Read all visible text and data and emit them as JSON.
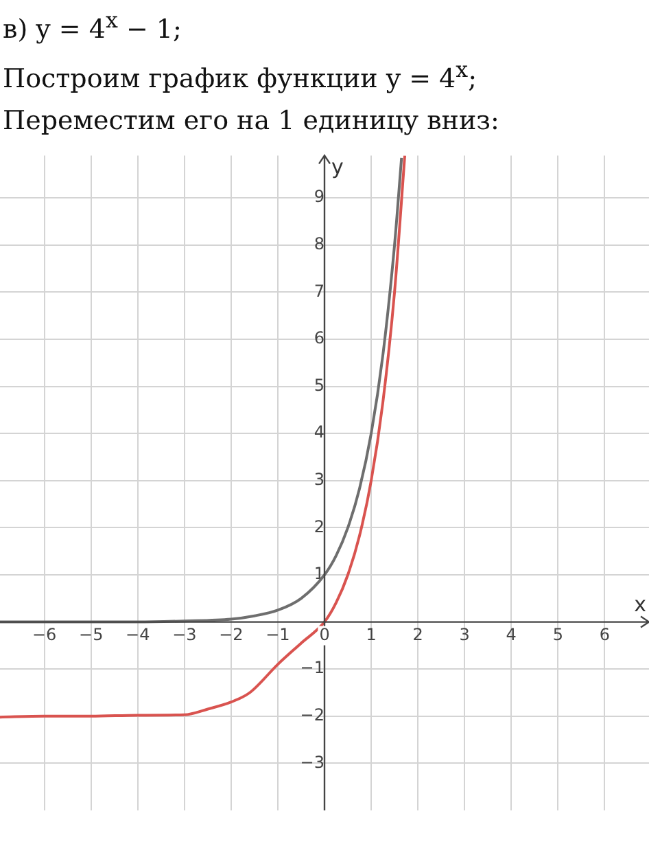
{
  "chart_data": {
    "type": "line",
    "title": "в) y = 4$^{x}$ − 1;",
    "subtitle": "Построим график функции y = 4$^{x}$;",
    "annotations": [
      "Переместим его на 1 единицу вниз:"
    ],
    "xlabel": "x",
    "ylabel": "y",
    "series": [
      {
        "color": "#6e6e6e",
        "x": [
          -6.95,
          -6,
          -5,
          -4,
          -3,
          -2,
          -1.5,
          -1,
          -0.5,
          0,
          0.25,
          0.5,
          0.75,
          1,
          1.25,
          1.5,
          1.65
        ],
        "values": [
          0,
          0,
          0,
          0,
          0.02,
          0.06,
          0.13,
          0.25,
          0.5,
          1,
          1.41,
          2,
          2.83,
          4,
          5.66,
          8,
          9.85
        ]
      },
      {
        "color": "#d9534f",
        "x": [
          -6.95,
          -6,
          -5,
          -4,
          -3,
          -2.5,
          -2,
          -1.6,
          -1,
          -0.5,
          0,
          0.25,
          0.5,
          0.75,
          1,
          1.25,
          1.5,
          1.72
        ],
        "values": [
          -2.02,
          -2,
          -2,
          -1.98,
          -1.97,
          -1.85,
          -1.7,
          -1.5,
          -0.9,
          -0.45,
          0,
          0.41,
          1,
          1.83,
          3,
          4.66,
          7,
          9.9
        ]
      }
    ],
    "xlim": [
      -6.95,
      6.95
    ],
    "ylim": [
      -4,
      9.9
    ],
    "xticks": [
      -6,
      -5,
      -4,
      -3,
      -2,
      -1,
      0,
      1,
      2,
      3,
      4,
      5,
      6
    ],
    "yticks": [
      -3,
      -2,
      -1,
      1,
      2,
      3,
      4,
      5,
      6,
      7,
      8,
      9
    ],
    "grid": true,
    "marker": "none",
    "line_style": "solid"
  }
}
